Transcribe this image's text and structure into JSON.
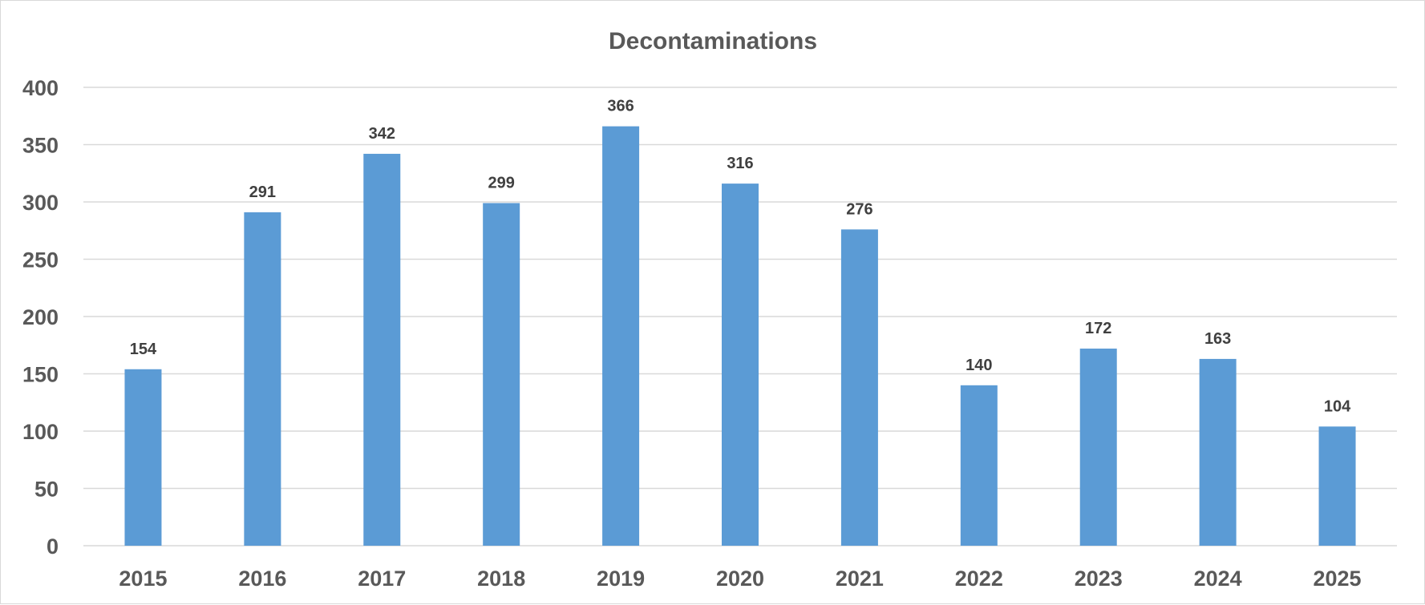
{
  "chart_data": {
    "type": "bar",
    "title": "Decontaminations",
    "xlabel": "",
    "ylabel": "",
    "categories": [
      "2015",
      "2016",
      "2017",
      "2018",
      "2019",
      "2020",
      "2021",
      "2022",
      "2023",
      "2024",
      "2025"
    ],
    "values": [
      154,
      291,
      342,
      299,
      366,
      316,
      276,
      140,
      172,
      163,
      104
    ],
    "ylim": [
      0,
      400
    ],
    "yticks": [
      0,
      50,
      100,
      150,
      200,
      250,
      300,
      350,
      400
    ],
    "grid": true,
    "legend": "none",
    "data_labels": true,
    "colors": {
      "bar": "#5b9bd5",
      "grid": "#d9d9d9",
      "axis_text": "#595959",
      "label_text": "#404040"
    }
  }
}
